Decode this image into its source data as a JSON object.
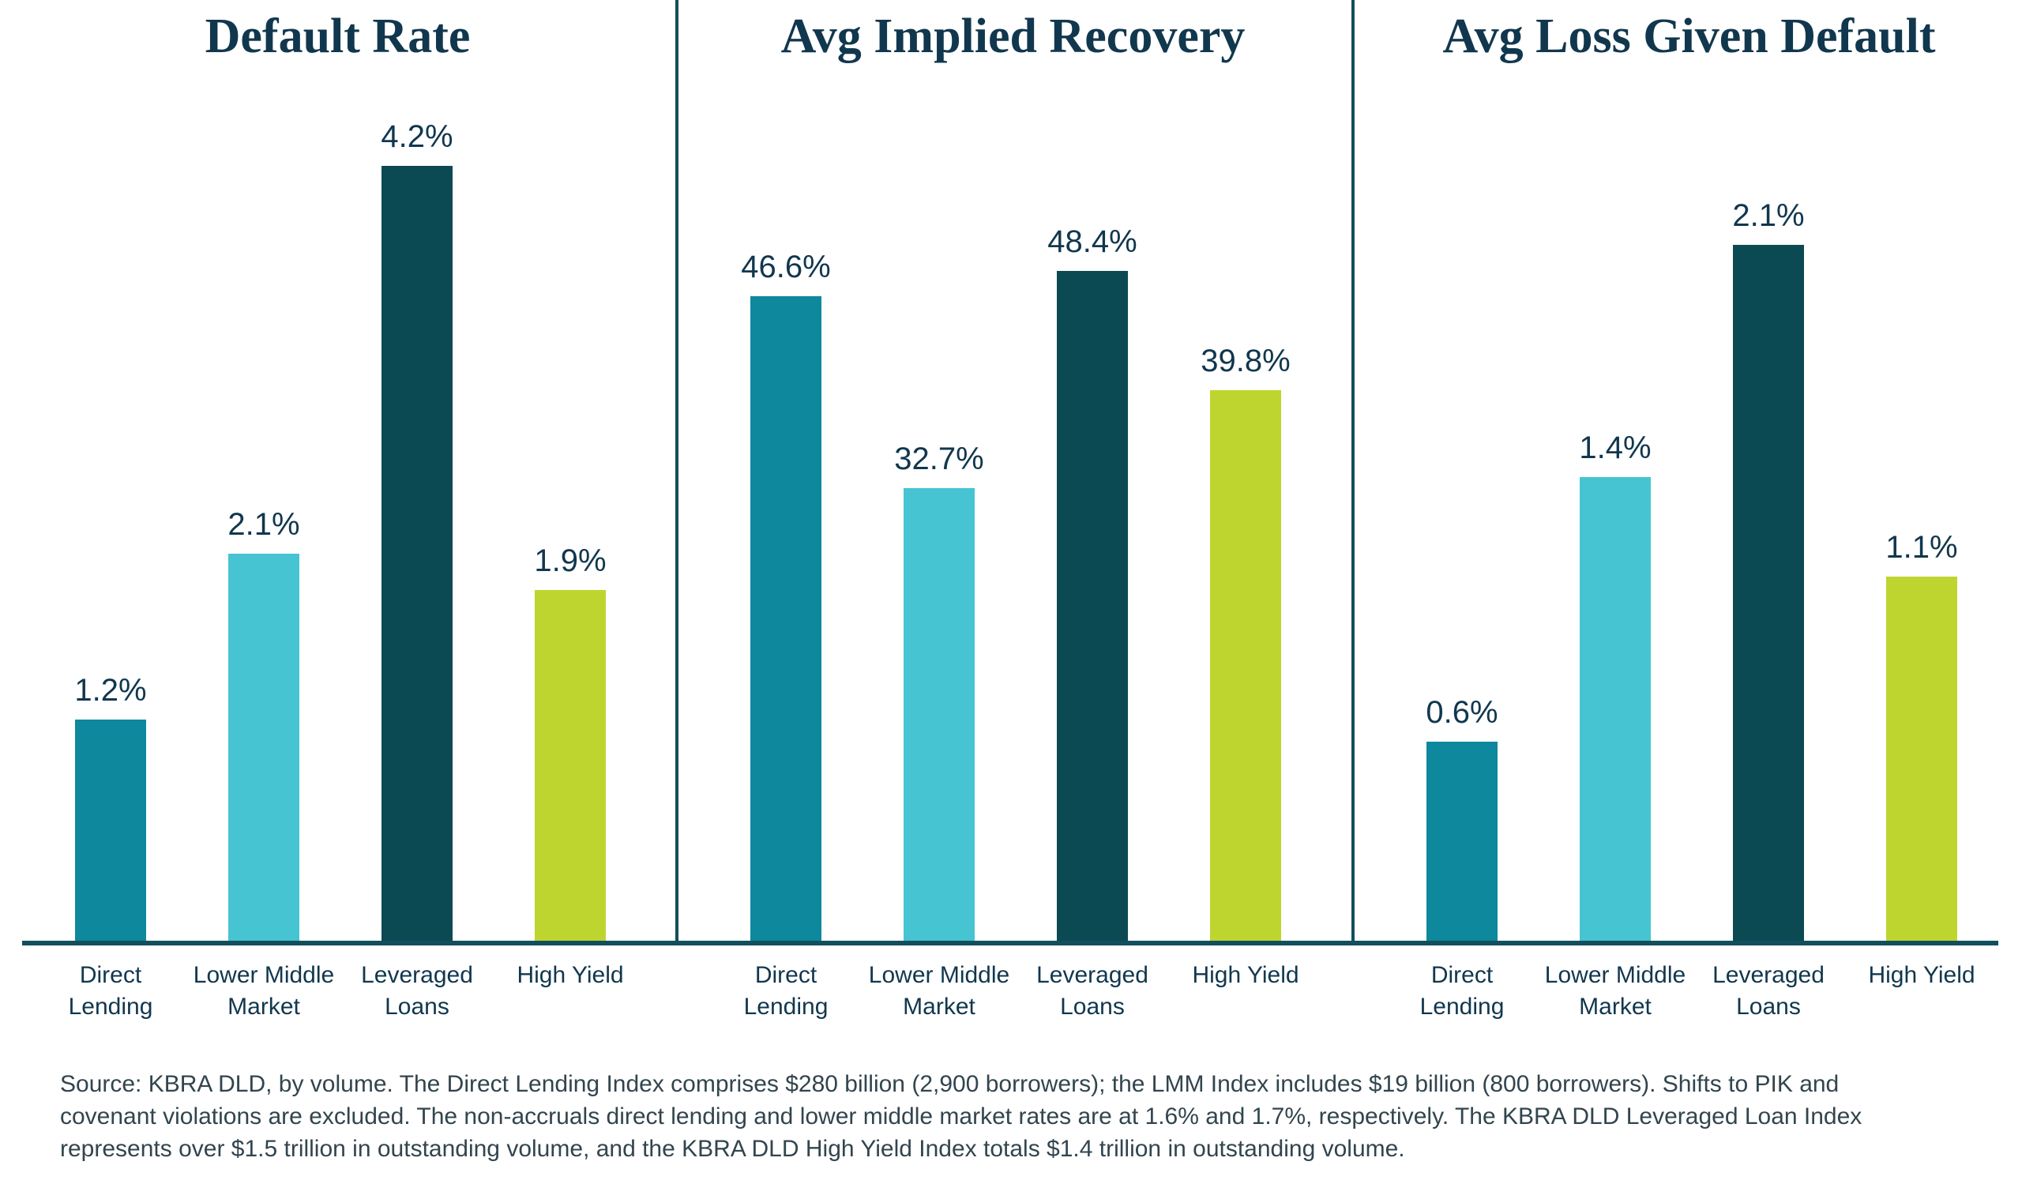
{
  "page": {
    "background": "#ffffff"
  },
  "colors": {
    "title_text": "#11374E",
    "value_label_text": "#11374E",
    "category_label_text": "#11374E",
    "axis_line": "#124F5C",
    "separator_line": "#124F5C",
    "source_text": "#32454E"
  },
  "series_colors": [
    "#0E889D",
    "#46C4D2",
    "#0C4A53",
    "#BFD52F"
  ],
  "series_color_names": [
    "teal",
    "light-cyan",
    "dark-teal",
    "yellow-green"
  ],
  "chart_data": [
    {
      "type": "bar",
      "title": "Default Rate",
      "categories": [
        "Direct\nLending",
        "Lower Middle\nMarket",
        "Leveraged\nLoans",
        "High Yield"
      ],
      "values": [
        1.2,
        2.1,
        4.2,
        1.9
      ],
      "labels": [
        "1.2%",
        "2.1%",
        "4.2%",
        "1.9%"
      ],
      "unit": "%",
      "ylim": [
        0,
        5.1
      ],
      "grid": false,
      "legend": false,
      "value_labels_position": "above-bars"
    },
    {
      "type": "bar",
      "title": "Avg Implied Recovery",
      "categories": [
        "Direct\nLending",
        "Lower Middle\nMarket",
        "Leveraged\nLoans",
        "High Yield"
      ],
      "values": [
        46.6,
        32.7,
        48.4,
        39.8
      ],
      "labels": [
        "46.6%",
        "32.7%",
        "48.4%",
        "39.8%"
      ],
      "unit": "%",
      "ylim": [
        0,
        68
      ],
      "grid": false,
      "legend": false,
      "value_labels_position": "above-bars"
    },
    {
      "type": "bar",
      "title": "Avg Loss Given Default",
      "categories": [
        "Direct\nLending",
        "Lower Middle\nMarket",
        "Leveraged\nLoans",
        "High Yield"
      ],
      "values": [
        0.6,
        1.4,
        2.1,
        1.1
      ],
      "labels": [
        "0.6%",
        "1.4%",
        "2.1%",
        "1.1%"
      ],
      "unit": "%",
      "ylim": [
        0,
        2.84
      ],
      "grid": false,
      "legend": false,
      "value_labels_position": "above-bars"
    }
  ],
  "source": {
    "lines": [
      "Source: KBRA DLD, by volume. The Direct Lending Index comprises $280 billion (2,900 borrowers); the LMM Index includes $19 billion (800 borrowers). Shifts to PIK and",
      "covenant violations are excluded. The non-accruals direct lending and lower middle market rates are at 1.6% and 1.7%, respectively. The KBRA DLD Leveraged Loan Index",
      "represents over $1.5 trillion in outstanding volume, and the KBRA DLD High Yield Index totals $1.4 trillion in outstanding volume."
    ]
  }
}
